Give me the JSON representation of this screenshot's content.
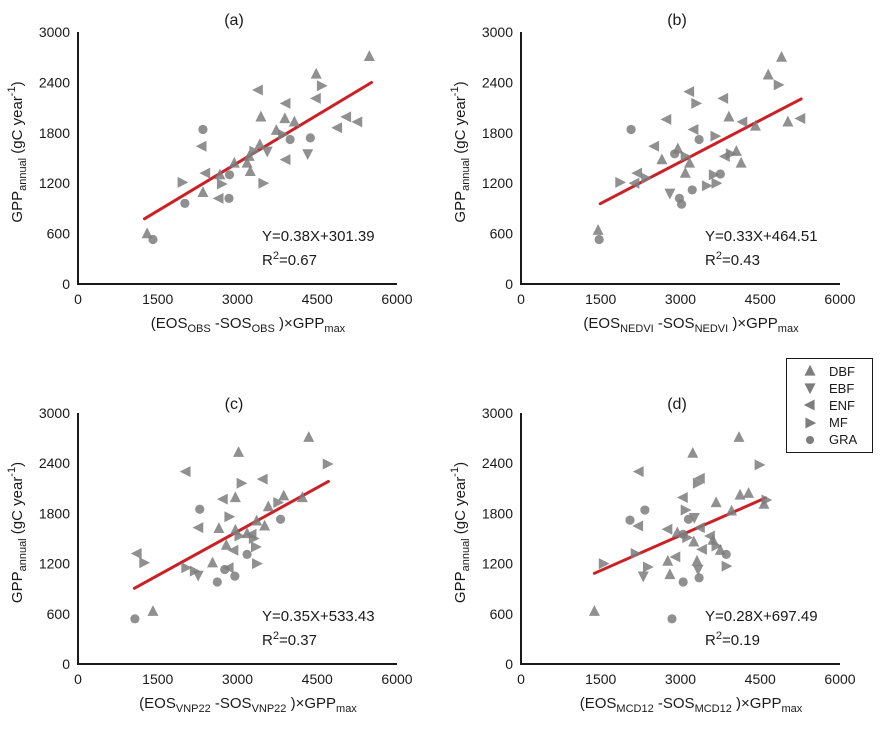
{
  "figure": {
    "background": "#ffffff",
    "marker_color": "#7d7d7d",
    "marker_opacity": 0.85,
    "line_color": "#cc2027",
    "axis_color": "#1a1a1a"
  },
  "axes_shared": {
    "x_ticks": [
      "0",
      "1500",
      "3000",
      "4500",
      "6000"
    ],
    "y_ticks": [
      "0",
      "600",
      "1200",
      "1800",
      "2400",
      "3000"
    ],
    "x_range": [
      0,
      6000
    ],
    "y_range": [
      0,
      3000
    ],
    "grid": false
  },
  "ylabel": {
    "main": "GPP",
    "sub": "annual",
    "mid": " (gC year",
    "sup": "-1",
    "end": ")"
  },
  "legend": {
    "position": "right-middle",
    "items": [
      {
        "label": "DBF",
        "marker": "triangle-up"
      },
      {
        "label": "EBF",
        "marker": "triangle-down"
      },
      {
        "label": "ENF",
        "marker": "triangle-left"
      },
      {
        "label": "MF",
        "marker": "triangle-right"
      },
      {
        "label": "GRA",
        "marker": "circle"
      }
    ]
  },
  "chart_data": [
    {
      "id": "a",
      "title": "(a)",
      "type": "scatter",
      "xlabel": {
        "pre": "(EOS",
        "var": "OBS",
        "mid": " -SOS",
        "post": " )×GPP",
        "post_sub": "max"
      },
      "equation": "Y=0.38X+301.39",
      "r2": {
        "base": "R",
        "exp": "2",
        "value": "=0.67"
      },
      "fit": {
        "slope": 0.38,
        "intercept": 301.39,
        "x_start": 1250,
        "x_end": 5520
      },
      "series": [
        {
          "name": "DBF",
          "marker": "triangle-up",
          "points": [
            [
              5480,
              2710
            ],
            [
              4480,
              2500
            ],
            [
              3440,
              1990
            ],
            [
              3890,
              1970
            ],
            [
              4070,
              1930
            ],
            [
              3730,
              1830
            ],
            [
              3420,
              1660
            ],
            [
              3220,
              1520
            ],
            [
              2940,
              1440
            ],
            [
              3180,
              1440
            ],
            [
              2670,
              1300
            ],
            [
              3240,
              1340
            ],
            [
              2350,
              1090
            ],
            [
              1300,
              600
            ]
          ]
        },
        {
          "name": "EBF",
          "marker": "triangle-down",
          "points": [
            [
              3560,
              1580
            ],
            [
              4320,
              1550
            ]
          ]
        },
        {
          "name": "ENF",
          "marker": "triangle-left",
          "points": [
            [
              3390,
              2310
            ],
            [
              4480,
              2210
            ],
            [
              3910,
              2150
            ],
            [
              5050,
              1990
            ],
            [
              5260,
              1930
            ],
            [
              4880,
              1860
            ],
            [
              2330,
              1640
            ],
            [
              3910,
              1480
            ],
            [
              2400,
              1320
            ],
            [
              2650,
              1020
            ]
          ]
        },
        {
          "name": "MF",
          "marker": "triangle-right",
          "points": [
            [
              4580,
              2360
            ],
            [
              3850,
              1780
            ],
            [
              3310,
              1580
            ],
            [
              3480,
              1200
            ],
            [
              1960,
              1210
            ],
            [
              2700,
              1190
            ]
          ]
        },
        {
          "name": "GRA",
          "marker": "circle",
          "points": [
            [
              2350,
              1840
            ],
            [
              4370,
              1740
            ],
            [
              3990,
              1720
            ],
            [
              2850,
              1300
            ],
            [
              2840,
              1020
            ],
            [
              2010,
              960
            ],
            [
              1410,
              530
            ]
          ]
        }
      ]
    },
    {
      "id": "b",
      "title": "(b)",
      "type": "scatter",
      "xlabel": {
        "pre": "(EOS",
        "var": "NEDVI",
        "mid": " -SOS",
        "post": " )×GPP",
        "post_sub": "max"
      },
      "equation": "Y=0.33X+464.51",
      "r2": {
        "base": "R",
        "exp": "2",
        "value": "=0.43"
      },
      "fit": {
        "slope": 0.33,
        "intercept": 464.51,
        "x_start": 1490,
        "x_end": 5270
      },
      "series": [
        {
          "name": "DBF",
          "marker": "triangle-up",
          "points": [
            [
              4900,
              2700
            ],
            [
              4650,
              2490
            ],
            [
              3910,
              1990
            ],
            [
              5020,
              1930
            ],
            [
              4410,
              1880
            ],
            [
              2650,
              1480
            ],
            [
              2950,
              1610
            ],
            [
              3170,
              1440
            ],
            [
              4050,
              1580
            ],
            [
              4140,
              1440
            ],
            [
              3090,
              1320
            ],
            [
              1450,
              640
            ]
          ]
        },
        {
          "name": "EBF",
          "marker": "triangle-down",
          "points": [
            [
              2800,
              1080
            ]
          ]
        },
        {
          "name": "ENF",
          "marker": "triangle-left",
          "points": [
            [
              3170,
              2290
            ],
            [
              3810,
              2210
            ],
            [
              2740,
              1960
            ],
            [
              4170,
              1930
            ],
            [
              5260,
              1970
            ],
            [
              3250,
              1840
            ],
            [
              2510,
              1640
            ],
            [
              3840,
              1520
            ],
            [
              2190,
              1320
            ],
            [
              2140,
              1200
            ]
          ]
        },
        {
          "name": "MF",
          "marker": "triangle-right",
          "points": [
            [
              4840,
              2370
            ],
            [
              3290,
              2150
            ],
            [
              3650,
              1760
            ],
            [
              3090,
              1520
            ],
            [
              3940,
              1550
            ],
            [
              3620,
              1300
            ],
            [
              2350,
              1260
            ],
            [
              1860,
              1210
            ],
            [
              3490,
              1170
            ],
            [
              3670,
              1200
            ]
          ]
        },
        {
          "name": "GRA",
          "marker": "circle",
          "points": [
            [
              2070,
              1840
            ],
            [
              3350,
              1720
            ],
            [
              2890,
              1550
            ],
            [
              3750,
              1310
            ],
            [
              3220,
              1120
            ],
            [
              2980,
              1020
            ],
            [
              3020,
              950
            ],
            [
              1470,
              530
            ]
          ]
        }
      ]
    },
    {
      "id": "c",
      "title": "(c)",
      "type": "scatter",
      "xlabel": {
        "pre": "(EOS",
        "var": "VNP22",
        "mid": " -SOS",
        "post": " )×GPP",
        "post_sub": "max"
      },
      "equation": "Y=0.35X+533.43",
      "r2": {
        "base": "R",
        "exp": "2",
        "value": "=0.37"
      },
      "fit": {
        "slope": 0.35,
        "intercept": 533.43,
        "x_start": 1060,
        "x_end": 4710
      },
      "series": [
        {
          "name": "DBF",
          "marker": "triangle-up",
          "points": [
            [
              4340,
              2710
            ],
            [
              3020,
              2530
            ],
            [
              2960,
              1990
            ],
            [
              3870,
              2010
            ],
            [
              4220,
              1990
            ],
            [
              3580,
              1880
            ],
            [
              2650,
              1620
            ],
            [
              3360,
              1710
            ],
            [
              3510,
              1650
            ],
            [
              2960,
              1600
            ],
            [
              3180,
              1560
            ],
            [
              2790,
              1420
            ],
            [
              2530,
              1210
            ],
            [
              1410,
              630
            ]
          ]
        },
        {
          "name": "EBF",
          "marker": "triangle-down",
          "points": [
            [
              2260,
              1060
            ]
          ]
        },
        {
          "name": "ENF",
          "marker": "triangle-left",
          "points": [
            [
              2030,
              2300
            ],
            [
              3480,
              2210
            ],
            [
              2730,
              1970
            ],
            [
              2270,
              1630
            ],
            [
              3270,
              1550
            ],
            [
              2930,
              1360
            ],
            [
              1110,
              1320
            ],
            [
              2840,
              1150
            ]
          ]
        },
        {
          "name": "MF",
          "marker": "triangle-right",
          "points": [
            [
              4690,
              2390
            ],
            [
              3070,
              2160
            ],
            [
              3760,
              1930
            ],
            [
              2840,
              1760
            ],
            [
              3030,
              1530
            ],
            [
              3300,
              1500
            ],
            [
              3340,
              1400
            ],
            [
              1240,
              1210
            ],
            [
              3360,
              1200
            ],
            [
              2030,
              1150
            ],
            [
              2190,
              1110
            ]
          ]
        },
        {
          "name": "GRA",
          "marker": "circle",
          "points": [
            [
              2290,
              1850
            ],
            [
              3810,
              1730
            ],
            [
              3180,
              1310
            ],
            [
              2760,
              1130
            ],
            [
              2950,
              1050
            ],
            [
              2620,
              980
            ],
            [
              1070,
              540
            ]
          ]
        }
      ]
    },
    {
      "id": "d",
      "title": "(d)",
      "type": "scatter",
      "xlabel": {
        "pre": "(EOS",
        "var": "MCD12",
        "mid": " -SOS",
        "post": " )×GPP",
        "post_sub": "max"
      },
      "equation": "Y=0.28X+697.49",
      "r2": {
        "base": "R",
        "exp": "2",
        "value": "=0.19"
      },
      "fit": {
        "slope": 0.28,
        "intercept": 697.49,
        "x_start": 1380,
        "x_end": 4600
      },
      "series": [
        {
          "name": "DBF",
          "marker": "triangle-up",
          "points": [
            [
              4100,
              2710
            ],
            [
              3230,
              2520
            ],
            [
              3670,
              1930
            ],
            [
              4120,
              2020
            ],
            [
              4280,
              2040
            ],
            [
              4570,
              1910
            ],
            [
              3960,
              1830
            ],
            [
              2940,
              1570
            ],
            [
              3250,
              1460
            ],
            [
              3610,
              1480
            ],
            [
              3750,
              1360
            ],
            [
              2760,
              1230
            ],
            [
              3310,
              1230
            ],
            [
              2800,
              1070
            ],
            [
              1380,
              630
            ]
          ]
        },
        {
          "name": "EBF",
          "marker": "triangle-down",
          "points": [
            [
              3260,
              1750
            ],
            [
              3330,
              1130
            ],
            [
              2300,
              1050
            ]
          ]
        },
        {
          "name": "ENF",
          "marker": "triangle-left",
          "points": [
            [
              2220,
              2300
            ],
            [
              3370,
              2220
            ],
            [
              3050,
              1990
            ],
            [
              2210,
              1650
            ],
            [
              2760,
              1610
            ],
            [
              3370,
              1630
            ],
            [
              3560,
              1530
            ],
            [
              3410,
              1370
            ],
            [
              2910,
              1280
            ]
          ]
        },
        {
          "name": "MF",
          "marker": "triangle-right",
          "points": [
            [
              4480,
              2380
            ],
            [
              3320,
              2160
            ],
            [
              3090,
              1840
            ],
            [
              4610,
              1960
            ],
            [
              3120,
              1510
            ],
            [
              3670,
              1410
            ],
            [
              2150,
              1320
            ],
            [
              1550,
              1200
            ],
            [
              2380,
              1160
            ],
            [
              3860,
              1170
            ]
          ]
        },
        {
          "name": "GRA",
          "marker": "circle",
          "points": [
            [
              2330,
              1840
            ],
            [
              2050,
              1720
            ],
            [
              3150,
              1730
            ],
            [
              3050,
              1550
            ],
            [
              3860,
              1310
            ],
            [
              3350,
              1030
            ],
            [
              3050,
              980
            ],
            [
              2840,
              540
            ]
          ]
        }
      ]
    }
  ]
}
